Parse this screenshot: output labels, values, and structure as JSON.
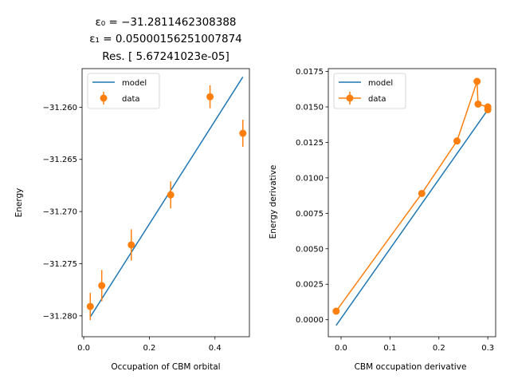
{
  "chart_data": [
    {
      "type": "line",
      "title_lines": [
        "ε₀ = −31.2811462308388",
        "ε₁ = 0.05000156251007874",
        "Res. [  5.67241023e-05]"
      ],
      "xlabel": "Occupation of CBM orbital",
      "ylabel": "Energy",
      "xlim": [
        -0.005,
        0.505
      ],
      "ylim": [
        -31.282,
        -31.2563
      ],
      "xticks": [
        0.0,
        0.2,
        0.4
      ],
      "xtick_labels": [
        "0.0",
        "0.2",
        "0.4"
      ],
      "yticks": [
        -31.28,
        -31.275,
        -31.27,
        -31.265,
        -31.26
      ],
      "ytick_labels": [
        "−31.280",
        "−31.275",
        "−31.270",
        "−31.265",
        "−31.260"
      ],
      "legend": {
        "position": "upper left",
        "entries": [
          "model",
          "data"
        ]
      },
      "grid": false,
      "series": [
        {
          "name": "model",
          "kind": "line",
          "color": "#1f77b4",
          "x": [
            0.02,
            0.485
          ],
          "y": [
            -31.2801,
            -31.2571
          ]
        },
        {
          "name": "data",
          "kind": "errorbar",
          "color": "#ff7f0e",
          "x": [
            0.02,
            0.055,
            0.145,
            0.265,
            0.385,
            0.485
          ],
          "y": [
            -31.2791,
            -31.2771,
            -31.2732,
            -31.2684,
            -31.259,
            -31.2625
          ],
          "yerr": [
            0.0013,
            0.0015,
            0.0015,
            0.0013,
            0.0011,
            0.0013
          ]
        }
      ]
    },
    {
      "type": "line",
      "xlabel": "CBM occupation derivative",
      "ylabel": "Energy derivative",
      "xlim": [
        -0.026,
        0.316
      ],
      "ylim": [
        -0.0012,
        0.0177
      ],
      "xticks": [
        0.0,
        0.1,
        0.2,
        0.3
      ],
      "xtick_labels": [
        "0.0",
        "0.1",
        "0.2",
        "0.3"
      ],
      "yticks": [
        0.0,
        0.0025,
        0.005,
        0.0075,
        0.01,
        0.0125,
        0.015,
        0.0175
      ],
      "ytick_labels": [
        "0.0000",
        "0.0025",
        "0.0050",
        "0.0075",
        "0.0100",
        "0.0125",
        "0.0150",
        "0.0175"
      ],
      "legend": {
        "position": "upper left",
        "entries": [
          "model",
          "data"
        ]
      },
      "grid": false,
      "series": [
        {
          "name": "model",
          "kind": "line",
          "color": "#1f77b4",
          "x": [
            -0.01,
            0.3
          ],
          "y": [
            -0.0004,
            0.0148
          ]
        },
        {
          "name": "data",
          "kind": "errorbar-line",
          "color": "#ff7f0e",
          "x": [
            -0.01,
            0.165,
            0.237,
            0.278,
            0.28,
            0.3,
            0.3
          ],
          "y": [
            0.0006,
            0.0089,
            0.0126,
            0.0168,
            0.0152,
            0.015,
            0.0148
          ]
        }
      ]
    }
  ]
}
